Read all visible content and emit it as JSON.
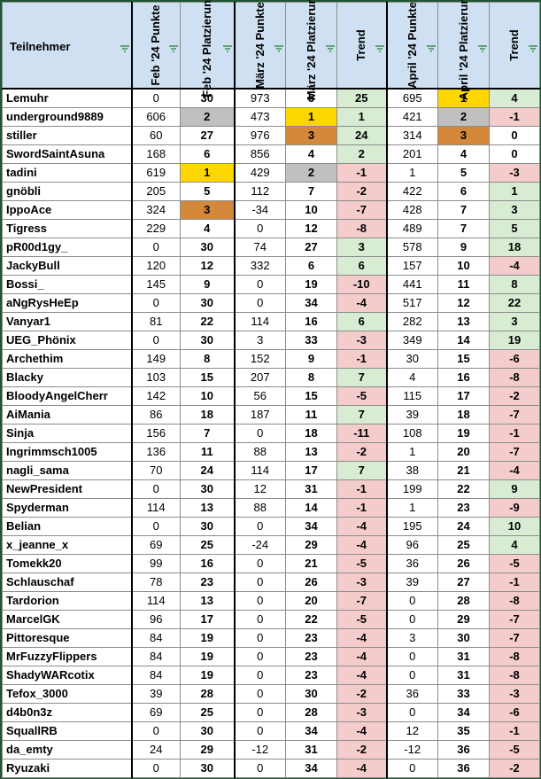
{
  "columns": {
    "participant": "Teilnehmer",
    "feb_points": "Feb '24 Punkte",
    "feb_rank": "Feb '24 Platzierung",
    "mar_points": "März '24 Punkte",
    "mar_rank": "März '24 Platzierung",
    "mar_trend": "Trend",
    "apr_points": "April '24 Punkte",
    "apr_rank": "April '24 Platzierung",
    "apr_trend": "Trend"
  },
  "colors": {
    "gold": "#ffd700",
    "silver": "#c0c0c0",
    "bronze": "#d4883a",
    "positive": "#d8ecd4",
    "negative": "#f4cccc",
    "header": "#cfe0f3"
  },
  "rows": [
    {
      "name": "Lemuhr",
      "fp": "0",
      "fr": "30",
      "mp": "973",
      "mr": "5",
      "mt": "25",
      "ap": "695",
      "ar": "1",
      "at": "4"
    },
    {
      "name": "underground9889",
      "fp": "606",
      "fr": "2",
      "mp": "473",
      "mr": "1",
      "mt": "1",
      "ap": "421",
      "ar": "2",
      "at": "-1"
    },
    {
      "name": "stiller",
      "fp": "60",
      "fr": "27",
      "mp": "976",
      "mr": "3",
      "mt": "24",
      "ap": "314",
      "ar": "3",
      "at": "0"
    },
    {
      "name": "SwordSaintAsuna",
      "fp": "168",
      "fr": "6",
      "mp": "856",
      "mr": "4",
      "mt": "2",
      "ap": "201",
      "ar": "4",
      "at": "0"
    },
    {
      "name": "tadini",
      "fp": "619",
      "fr": "1",
      "mp": "429",
      "mr": "2",
      "mt": "-1",
      "ap": "1",
      "ar": "5",
      "at": "-3"
    },
    {
      "name": "gnöbli",
      "fp": "205",
      "fr": "5",
      "mp": "112",
      "mr": "7",
      "mt": "-2",
      "ap": "422",
      "ar": "6",
      "at": "1"
    },
    {
      "name": "IppoAce",
      "fp": "324",
      "fr": "3",
      "mp": "-34",
      "mr": "10",
      "mt": "-7",
      "ap": "428",
      "ar": "7",
      "at": "3"
    },
    {
      "name": "Tigress",
      "fp": "229",
      "fr": "4",
      "mp": "0",
      "mr": "12",
      "mt": "-8",
      "ap": "489",
      "ar": "7",
      "at": "5"
    },
    {
      "name": "pR00d1gy_",
      "fp": "0",
      "fr": "30",
      "mp": "74",
      "mr": "27",
      "mt": "3",
      "ap": "578",
      "ar": "9",
      "at": "18"
    },
    {
      "name": "JackyBull",
      "fp": "120",
      "fr": "12",
      "mp": "332",
      "mr": "6",
      "mt": "6",
      "ap": "157",
      "ar": "10",
      "at": "-4"
    },
    {
      "name": "Bossi_",
      "fp": "145",
      "fr": "9",
      "mp": "0",
      "mr": "19",
      "mt": "-10",
      "ap": "441",
      "ar": "11",
      "at": "8"
    },
    {
      "name": "aNgRysHeEp",
      "fp": "0",
      "fr": "30",
      "mp": "0",
      "mr": "34",
      "mt": "-4",
      "ap": "517",
      "ar": "12",
      "at": "22"
    },
    {
      "name": "Vanyar1",
      "fp": "81",
      "fr": "22",
      "mp": "114",
      "mr": "16",
      "mt": "6",
      "ap": "282",
      "ar": "13",
      "at": "3"
    },
    {
      "name": "UEG_Phönix",
      "fp": "0",
      "fr": "30",
      "mp": "3",
      "mr": "33",
      "mt": "-3",
      "ap": "349",
      "ar": "14",
      "at": "19"
    },
    {
      "name": "Archethim",
      "fp": "149",
      "fr": "8",
      "mp": "152",
      "mr": "9",
      "mt": "-1",
      "ap": "30",
      "ar": "15",
      "at": "-6"
    },
    {
      "name": "Blacky",
      "fp": "103",
      "fr": "15",
      "mp": "207",
      "mr": "8",
      "mt": "7",
      "ap": "4",
      "ar": "16",
      "at": "-8"
    },
    {
      "name": "BloodyAngelCherr",
      "fp": "142",
      "fr": "10",
      "mp": "56",
      "mr": "15",
      "mt": "-5",
      "ap": "115",
      "ar": "17",
      "at": "-2"
    },
    {
      "name": "AiMania",
      "fp": "86",
      "fr": "18",
      "mp": "187",
      "mr": "11",
      "mt": "7",
      "ap": "39",
      "ar": "18",
      "at": "-7"
    },
    {
      "name": "Sinja",
      "fp": "156",
      "fr": "7",
      "mp": "0",
      "mr": "18",
      "mt": "-11",
      "ap": "108",
      "ar": "19",
      "at": "-1"
    },
    {
      "name": "Ingrimmsch1005",
      "fp": "136",
      "fr": "11",
      "mp": "88",
      "mr": "13",
      "mt": "-2",
      "ap": "1",
      "ar": "20",
      "at": "-7"
    },
    {
      "name": "nagli_sama",
      "fp": "70",
      "fr": "24",
      "mp": "114",
      "mr": "17",
      "mt": "7",
      "ap": "38",
      "ar": "21",
      "at": "-4"
    },
    {
      "name": "NewPresident",
      "fp": "0",
      "fr": "30",
      "mp": "12",
      "mr": "31",
      "mt": "-1",
      "ap": "199",
      "ar": "22",
      "at": "9"
    },
    {
      "name": "Spyderman",
      "fp": "114",
      "fr": "13",
      "mp": "88",
      "mr": "14",
      "mt": "-1",
      "ap": "1",
      "ar": "23",
      "at": "-9"
    },
    {
      "name": "Belian",
      "fp": "0",
      "fr": "30",
      "mp": "0",
      "mr": "34",
      "mt": "-4",
      "ap": "195",
      "ar": "24",
      "at": "10"
    },
    {
      "name": "x_jeanne_x",
      "fp": "69",
      "fr": "25",
      "mp": "-24",
      "mr": "29",
      "mt": "-4",
      "ap": "96",
      "ar": "25",
      "at": "4"
    },
    {
      "name": "Tomekk20",
      "fp": "99",
      "fr": "16",
      "mp": "0",
      "mr": "21",
      "mt": "-5",
      "ap": "36",
      "ar": "26",
      "at": "-5"
    },
    {
      "name": "Schlauschaf",
      "fp": "78",
      "fr": "23",
      "mp": "0",
      "mr": "26",
      "mt": "-3",
      "ap": "39",
      "ar": "27",
      "at": "-1"
    },
    {
      "name": "Tardorion",
      "fp": "114",
      "fr": "13",
      "mp": "0",
      "mr": "20",
      "mt": "-7",
      "ap": "0",
      "ar": "28",
      "at": "-8"
    },
    {
      "name": "MarcelGK",
      "fp": "96",
      "fr": "17",
      "mp": "0",
      "mr": "22",
      "mt": "-5",
      "ap": "0",
      "ar": "29",
      "at": "-7"
    },
    {
      "name": "Pittoresque",
      "fp": "84",
      "fr": "19",
      "mp": "0",
      "mr": "23",
      "mt": "-4",
      "ap": "3",
      "ar": "30",
      "at": "-7"
    },
    {
      "name": "MrFuzzyFlippers",
      "fp": "84",
      "fr": "19",
      "mp": "0",
      "mr": "23",
      "mt": "-4",
      "ap": "0",
      "ar": "31",
      "at": "-8"
    },
    {
      "name": "ShadyWARcotix",
      "fp": "84",
      "fr": "19",
      "mp": "0",
      "mr": "23",
      "mt": "-4",
      "ap": "0",
      "ar": "31",
      "at": "-8"
    },
    {
      "name": "Tefox_3000",
      "fp": "39",
      "fr": "28",
      "mp": "0",
      "mr": "30",
      "mt": "-2",
      "ap": "36",
      "ar": "33",
      "at": "-3"
    },
    {
      "name": "d4b0n3z",
      "fp": "69",
      "fr": "25",
      "mp": "0",
      "mr": "28",
      "mt": "-3",
      "ap": "0",
      "ar": "34",
      "at": "-6"
    },
    {
      "name": "SquallRB",
      "fp": "0",
      "fr": "30",
      "mp": "0",
      "mr": "34",
      "mt": "-4",
      "ap": "12",
      "ar": "35",
      "at": "-1"
    },
    {
      "name": "da_emty",
      "fp": "24",
      "fr": "29",
      "mp": "-12",
      "mr": "31",
      "mt": "-2",
      "ap": "-12",
      "ar": "36",
      "at": "-5"
    },
    {
      "name": "Ryuzaki",
      "fp": "0",
      "fr": "30",
      "mp": "0",
      "mr": "34",
      "mt": "-4",
      "ap": "0",
      "ar": "36",
      "at": "-2"
    }
  ]
}
